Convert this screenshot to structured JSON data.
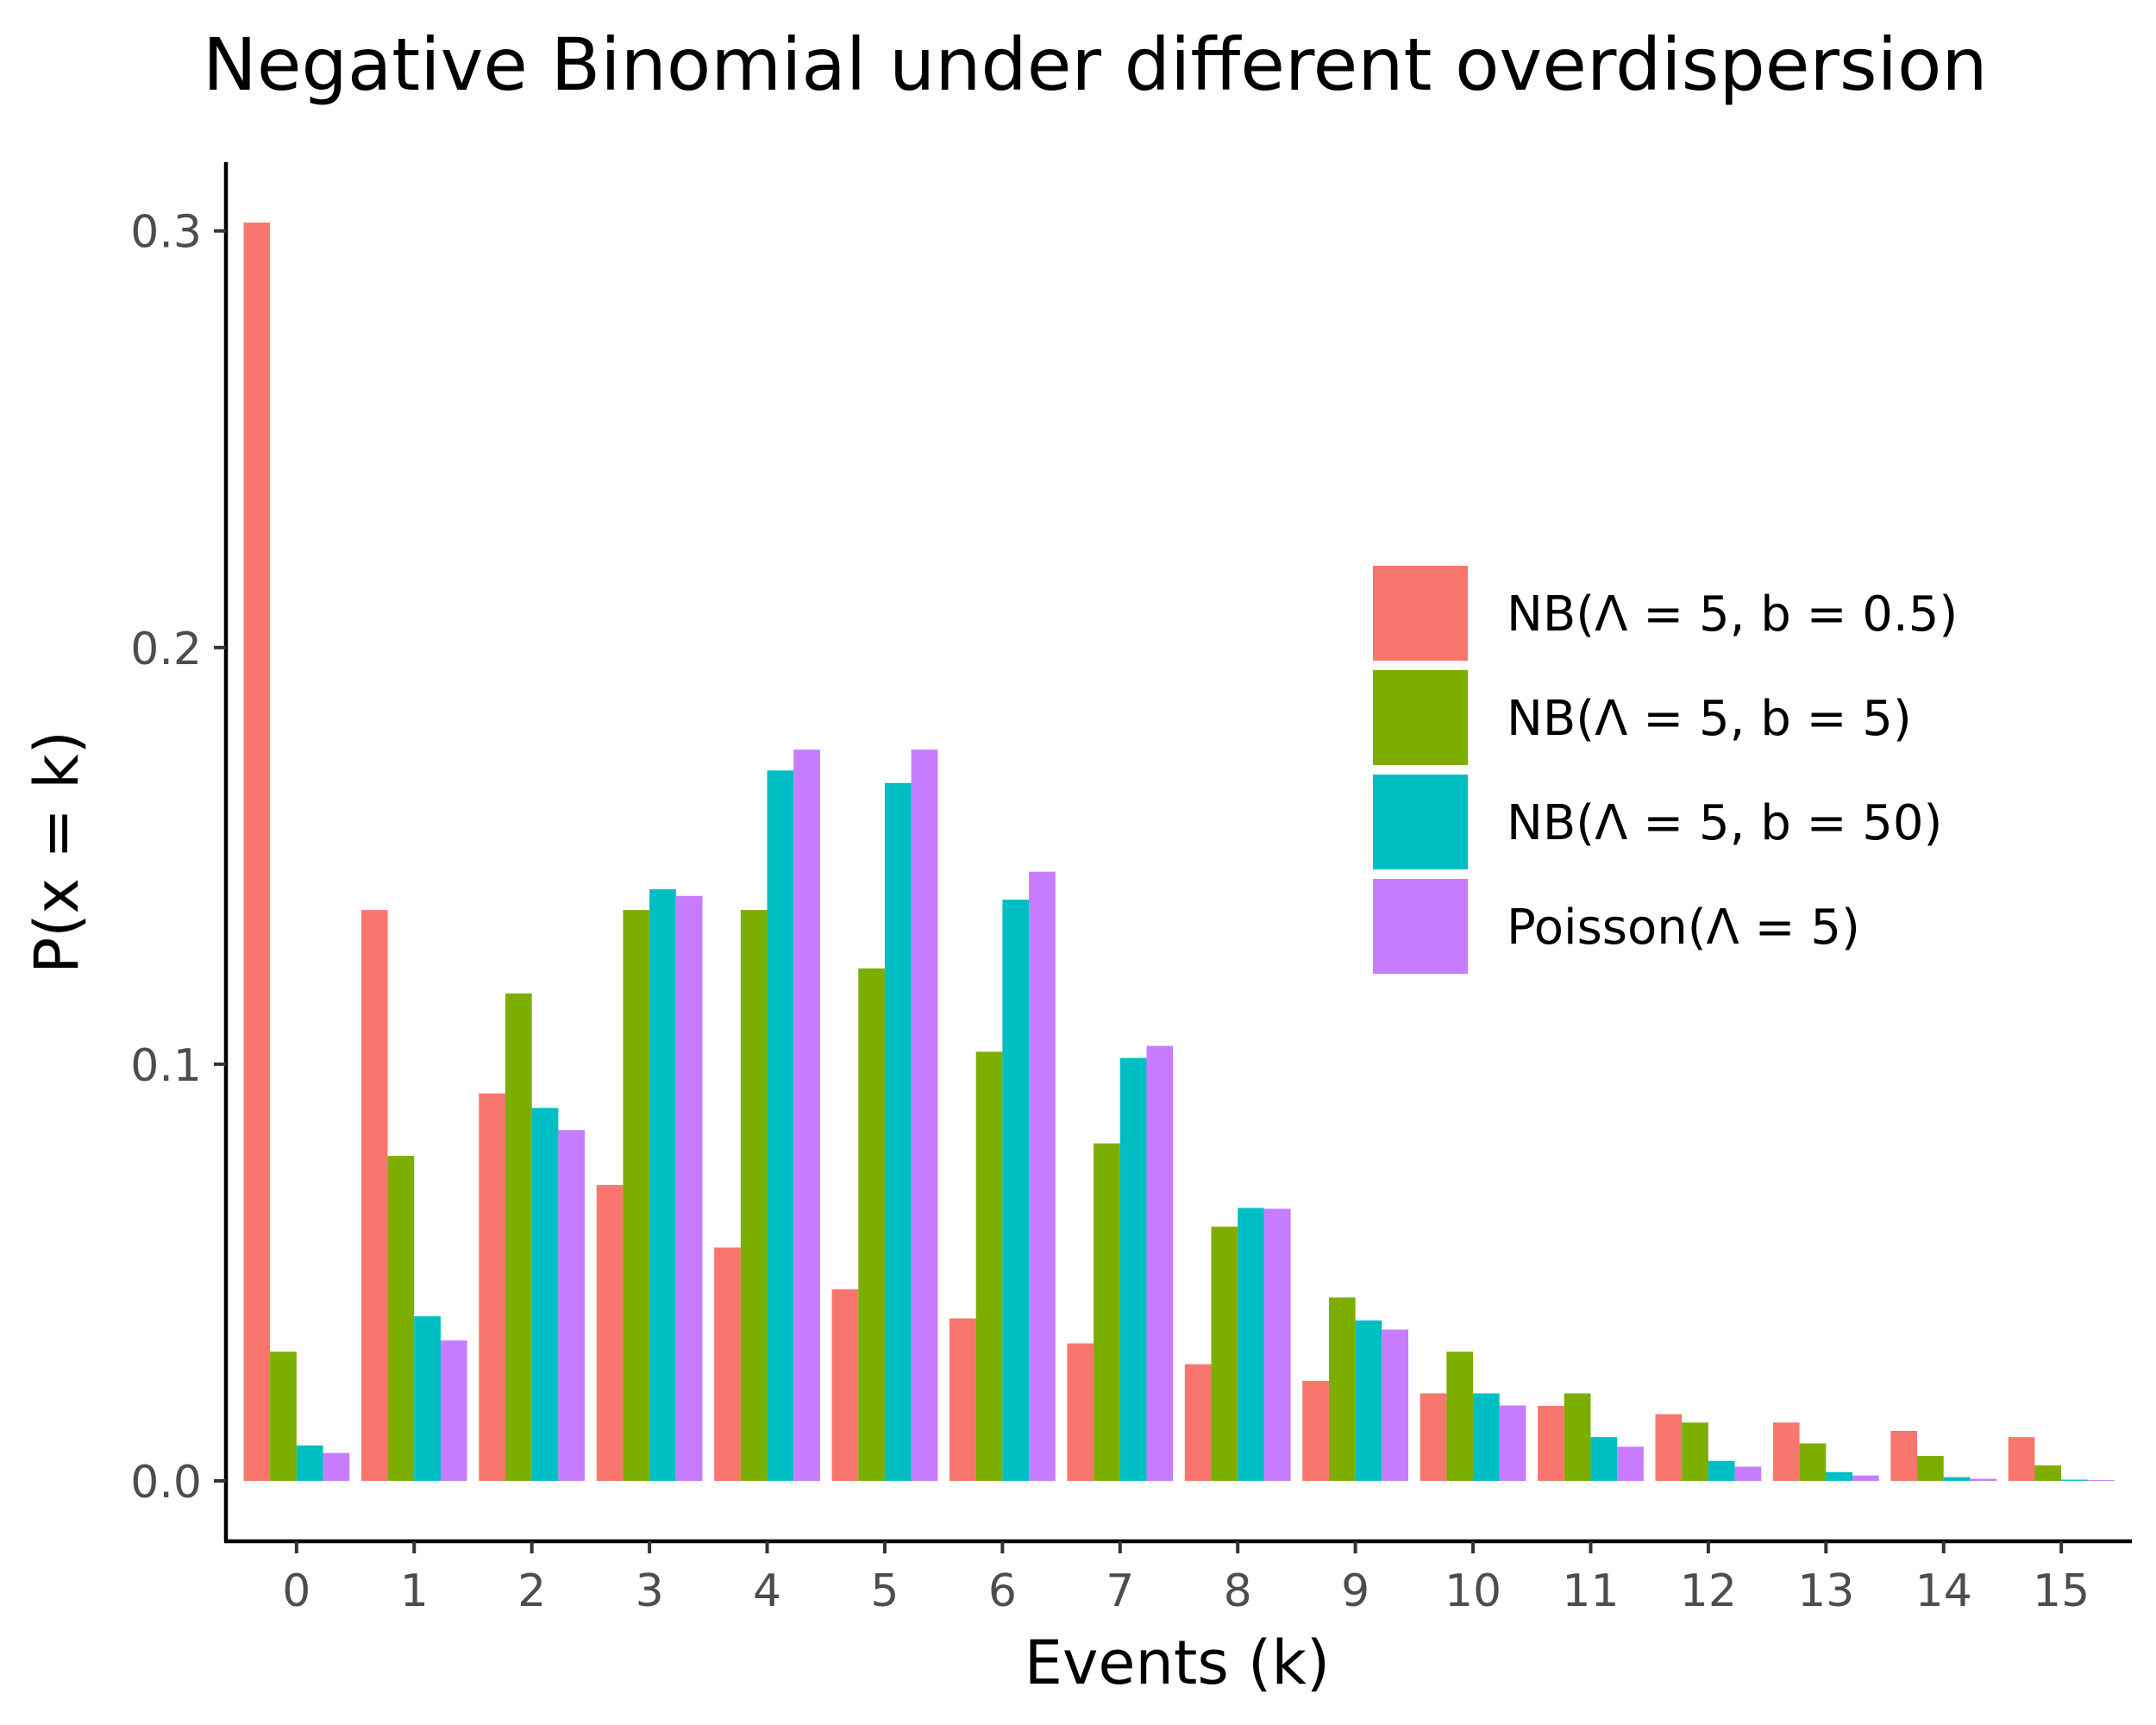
{
  "chart_data": {
    "type": "bar",
    "title": "Negative Binomial under different overdispersion",
    "xlabel": "Events (k)",
    "ylabel": "P(x = k)",
    "categories": [
      "0",
      "1",
      "2",
      "3",
      "4",
      "5",
      "6",
      "7",
      "8",
      "9",
      "10",
      "11",
      "12",
      "13",
      "14",
      "15"
    ],
    "yticks": [
      "0.0",
      "0.1",
      "0.2",
      "0.3"
    ],
    "ytick_values": [
      0.0,
      0.1,
      0.2,
      0.3
    ],
    "ylim": [
      -0.0145,
      0.3165
    ],
    "grid": false,
    "legend_position": "right, inside plot area",
    "series": [
      {
        "name": "NB(Λ = 5,  b = 0.5)",
        "color": "#F8766D",
        "values": [
          0.302,
          0.137,
          0.093,
          0.071,
          0.056,
          0.046,
          0.039,
          0.033,
          0.028,
          0.024,
          0.021,
          0.018,
          0.016,
          0.014,
          0.012,
          0.0105
        ]
      },
      {
        "name": "NB(Λ = 5,  b = 5)",
        "color": "#7CAE00",
        "values": [
          0.031,
          0.078,
          0.117,
          0.137,
          0.137,
          0.123,
          0.103,
          0.081,
          0.061,
          0.044,
          0.031,
          0.021,
          0.014,
          0.009,
          0.006,
          0.0037
        ]
      },
      {
        "name": "NB(Λ = 5,  b = 50)",
        "color": "#00BFC4",
        "values": [
          0.0085,
          0.0395,
          0.0895,
          0.142,
          0.1705,
          0.1675,
          0.1395,
          0.1015,
          0.0655,
          0.0385,
          0.021,
          0.0105,
          0.0048,
          0.0021,
          0.0009,
          0.0003
        ]
      },
      {
        "name": "Poisson(Λ = 5)",
        "color": "#C77CFF",
        "values": [
          0.0067,
          0.0337,
          0.0842,
          0.1404,
          0.1755,
          0.1755,
          0.1462,
          0.1044,
          0.0653,
          0.0363,
          0.0181,
          0.0082,
          0.0034,
          0.0013,
          0.0005,
          0.0002
        ]
      }
    ]
  }
}
